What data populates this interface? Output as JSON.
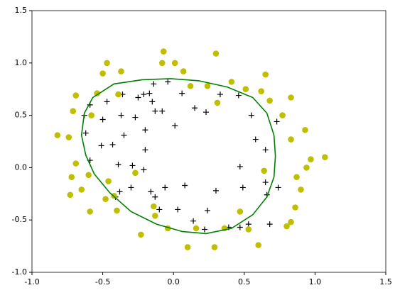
{
  "chart_data": {
    "type": "scatter",
    "xlim": [
      -1.0,
      1.5
    ],
    "ylim": [
      -1.0,
      1.5
    ],
    "xticks": [
      {
        "value": -1.0,
        "label": "-1.0"
      },
      {
        "value": -0.5,
        "label": "-0.5"
      },
      {
        "value": 0.0,
        "label": "0.0"
      },
      {
        "value": 0.5,
        "label": "0.5"
      },
      {
        "value": 1.0,
        "label": "1.0"
      },
      {
        "value": 1.5,
        "label": "1.5"
      }
    ],
    "yticks": [
      {
        "value": -1.0,
        "label": "-1.0"
      },
      {
        "value": -0.5,
        "label": "-0.5"
      },
      {
        "value": 0.0,
        "label": "0.0"
      },
      {
        "value": 0.5,
        "label": "0.5"
      },
      {
        "value": 1.0,
        "label": "1.0"
      },
      {
        "value": 1.5,
        "label": "1.5"
      }
    ],
    "grid": false,
    "series": [
      {
        "type": "scatter",
        "marker": "plus",
        "color": "#000000",
        "x": [
          -0.04,
          0.06,
          -0.14,
          -0.17,
          -0.21,
          -0.15,
          -0.25,
          -0.08,
          -0.13,
          -0.36,
          -0.47,
          -0.59,
          -0.63,
          -0.5,
          -0.37,
          -0.27,
          -0.35,
          -0.62,
          -0.43,
          -0.51,
          -0.2,
          -0.2,
          0.01,
          0.15,
          0.23,
          0.33,
          0.46,
          0.55,
          0.58,
          0.73,
          0.65,
          0.47,
          0.74,
          0.65,
          0.66,
          0.49,
          0.3,
          0.08,
          -0.06,
          -0.16,
          -0.3,
          -0.38,
          -0.39,
          -0.29,
          -0.21,
          -0.13,
          -0.1,
          0.03,
          0.24,
          0.14,
          0.22,
          0.39,
          0.47,
          0.53,
          0.68,
          -0.41,
          -0.59
        ],
        "values": [
          0.82,
          0.71,
          0.8,
          0.71,
          0.7,
          0.63,
          0.67,
          0.54,
          0.54,
          0.7,
          0.63,
          0.6,
          0.5,
          0.46,
          0.5,
          0.48,
          0.31,
          0.33,
          0.22,
          0.21,
          0.36,
          0.17,
          0.4,
          0.57,
          0.53,
          0.7,
          0.69,
          0.5,
          0.27,
          0.44,
          0.17,
          0.01,
          -0.19,
          -0.14,
          -0.26,
          -0.19,
          -0.22,
          -0.17,
          -0.19,
          -0.23,
          -0.19,
          -0.23,
          0.03,
          0.02,
          -0.02,
          -0.28,
          -0.4,
          -0.4,
          -0.41,
          -0.51,
          -0.59,
          -0.57,
          -0.57,
          -0.54,
          -0.54,
          -0.28,
          0.07
        ]
      },
      {
        "type": "scatter",
        "marker": "circle",
        "color": "#bfbf00",
        "x": [
          -0.07,
          -0.47,
          -0.5,
          -0.37,
          -0.08,
          0.01,
          0.07,
          0.3,
          0.65,
          0.41,
          0.51,
          0.62,
          0.68,
          -0.54,
          -0.69,
          -0.39,
          0.12,
          0.24,
          0.31,
          0.83,
          0.77,
          0.93,
          0.83,
          -0.71,
          -0.58,
          -0.82,
          -0.74,
          -0.69,
          -0.6,
          -0.46,
          -0.72,
          -0.65,
          -0.73,
          -0.27,
          0.64,
          0.87,
          0.94,
          0.97,
          1.07,
          0.9,
          0.86,
          0.83,
          0.8,
          0.53,
          0.6,
          0.47,
          0.29,
          0.1,
          -0.04,
          0.16,
          -0.14,
          -0.13,
          -0.23,
          -0.48,
          -0.4,
          -0.59,
          0.36,
          -0.42
        ],
        "values": [
          1.11,
          1.0,
          0.9,
          0.92,
          1.0,
          1.0,
          0.92,
          1.09,
          0.89,
          0.82,
          0.75,
          0.73,
          0.64,
          0.71,
          0.69,
          0.7,
          0.78,
          0.78,
          0.62,
          0.67,
          0.5,
          0.36,
          0.27,
          0.54,
          0.5,
          0.31,
          0.29,
          0.04,
          -0.07,
          -0.13,
          -0.09,
          -0.21,
          -0.26,
          -0.05,
          -0.03,
          -0.09,
          0.0,
          0.08,
          0.1,
          -0.21,
          -0.38,
          -0.52,
          -0.56,
          -0.59,
          -0.74,
          -0.42,
          -0.76,
          -0.76,
          -0.58,
          -0.58,
          -0.37,
          -0.46,
          -0.64,
          -0.3,
          -0.41,
          -0.42,
          -0.58,
          -0.27
        ]
      },
      {
        "type": "line",
        "color": "#008000",
        "x": [
          -0.65,
          -0.63,
          -0.57,
          -0.42,
          -0.22,
          -0.02,
          0.18,
          0.38,
          0.56,
          0.66,
          0.71,
          0.72,
          0.71,
          0.66,
          0.56,
          0.41,
          0.23,
          0.06,
          -0.12,
          -0.3,
          -0.45,
          -0.56,
          -0.62,
          -0.65
        ],
        "values": [
          0.31,
          0.52,
          0.67,
          0.8,
          0.84,
          0.85,
          0.83,
          0.77,
          0.67,
          0.52,
          0.31,
          0.11,
          -0.09,
          -0.28,
          -0.45,
          -0.58,
          -0.63,
          -0.61,
          -0.54,
          -0.42,
          -0.24,
          -0.06,
          0.12,
          0.31
        ]
      }
    ]
  }
}
